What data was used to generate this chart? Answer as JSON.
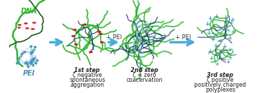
{
  "background_color": "#ffffff",
  "dna_label": "DNA",
  "pei_label": "PEI",
  "arrow1_label": "+ PEI",
  "arrow2_label": "+ PEI",
  "step1_lines": [
    "1st step",
    "ζ negative",
    "spontaneous",
    "aggregation"
  ],
  "step2_lines": [
    "2nd step",
    "ζ = zero",
    "coacervation"
  ],
  "step3_lines": [
    "3rd step",
    "ζ positive",
    "positively charged",
    "polyplexes"
  ],
  "arrow_color": "#4AABDB",
  "dna_green": "#2db52d",
  "dna_dark": "#1a5a1a",
  "pei_light": "#a8d8f0",
  "pei_dark": "#4a90b8",
  "polyplex_dark": "#1a3a6a",
  "neg_color": "#cc2222",
  "pos_color": "#4a9ac4",
  "label_fontsize": 6.5,
  "step_fontsize": 5.8,
  "fig_width": 3.78,
  "fig_height": 1.33,
  "dpi": 100
}
